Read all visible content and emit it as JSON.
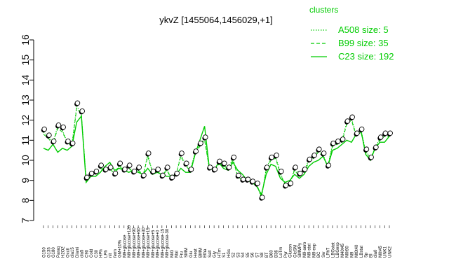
{
  "chart_data": {
    "type": "line",
    "title": "ykvZ [1455064,1456029,+1]",
    "ylim": [
      7,
      16
    ],
    "yticks": [
      7,
      8,
      9,
      10,
      11,
      12,
      13,
      14,
      15,
      16
    ],
    "xlabels": [
      "G150",
      "G135",
      "G180",
      "Paraq",
      "H2O2",
      "Oxctl",
      "dia15",
      "Diami",
      "dia5",
      "C90",
      "Cold",
      "C30",
      "HPh",
      "LPh",
      "nit",
      "ferm",
      "GM+10%",
      "M9+glucose",
      "M9+glucose+120",
      "M9+glucose+90",
      "M9+glucose+60",
      "M9+glucose+30",
      "M9+glucose+15",
      "M9+glucose+5",
      "M9+glucose+0",
      "M9+glucose-15",
      "M9+glucose-30",
      "M/G",
      "Mal",
      "Fru",
      "SMM",
      "Glu",
      "Heat",
      "BMM",
      "Etha",
      "Salt",
      "Gly",
      "HTm",
      "S1",
      "HGs",
      "S2",
      "S3",
      "S4",
      "S5",
      "S6",
      "S7",
      "S8",
      "BT",
      "B60",
      "B36",
      "LoTm",
      "Pyr",
      "Glucon",
      "GlcSM",
      "SMMPy",
      "M9-aero",
      "M9-stat",
      "M9-exp",
      "BC",
      "Sw",
      "LPhT",
      "LBGstat",
      "LBGexp",
      "M40t45",
      "M0t90",
      "M9",
      "Mt0t40",
      "LBstat",
      "Sp",
      "BI",
      "dia0",
      "M0t45",
      "UNK1",
      "UNK2"
    ],
    "series": [
      {
        "name": "C23",
        "color": "#00cc00",
        "dash": "solid",
        "values": [
          10.6,
          10.5,
          10.8,
          10.4,
          10.6,
          10.5,
          10.7,
          11.9,
          12.2,
          8.9,
          9.2,
          9.2,
          9.4,
          9.7,
          9.9,
          9.5,
          9.6,
          9.5,
          9.4,
          9.5,
          9.4,
          9.3,
          9.6,
          9.3,
          9.4,
          9.3,
          9.2,
          9.2,
          9.3,
          9.6,
          9.4,
          9.4,
          10.3,
          11.0,
          11.7,
          9.6,
          9.5,
          9.9,
          9.6,
          9.5,
          9.9,
          9.5,
          9.3,
          9.0,
          8.9,
          8.7,
          8.3,
          9.3,
          9.8,
          9.7,
          9.1,
          8.9,
          9.0,
          9.3,
          9.1,
          9.3,
          9.7,
          9.9,
          10.0,
          10.2,
          9.7,
          10.5,
          10.6,
          10.8,
          11.0,
          10.9,
          11.3,
          11.5,
          10.3,
          10.0,
          10.6,
          10.9,
          10.9,
          11.2
        ],
        "points": [
          11.5,
          11.2,
          10.9,
          11.7,
          11.6,
          10.9,
          10.8,
          12.8,
          12.4,
          9.1,
          9.3,
          9.4,
          9.7,
          9.5,
          9.6,
          9.3,
          9.8,
          9.5,
          9.7,
          9.4,
          9.6,
          9.2,
          10.3,
          9.4,
          9.5,
          9.2,
          9.6,
          9.1,
          9.3,
          10.3,
          9.8,
          9.5,
          10.4,
          10.8,
          11.1,
          9.6,
          9.5,
          9.9,
          9.8,
          9.6,
          10.1,
          9.2,
          9.0,
          9.0,
          8.9,
          8.8,
          8.1,
          9.6,
          10.1,
          10.2,
          9.4,
          8.7,
          8.8,
          9.6,
          9.3,
          9.5,
          10.0,
          10.2,
          10.5,
          10.3,
          9.7,
          10.8,
          10.9,
          11.0,
          11.9,
          12.1,
          11.3,
          11.5,
          10.5,
          10.1,
          10.6,
          11.1,
          11.3,
          11.3
        ]
      },
      {
        "name": "B99",
        "color": "#00cc00",
        "dash": "dashed",
        "values": [
          11.3,
          11.1,
          10.8,
          11.6,
          11.4,
          10.9,
          10.7,
          12.6,
          12.3,
          9.0,
          9.2,
          9.4,
          9.6,
          9.5,
          9.6,
          9.3,
          9.7,
          9.5,
          9.6,
          9.4,
          9.5,
          9.2,
          10.2,
          9.4,
          9.5,
          9.2,
          9.5,
          9.1,
          9.3,
          10.2,
          9.7,
          9.5,
          10.3,
          10.7,
          11.0,
          9.6,
          9.5,
          9.8,
          9.7,
          9.6,
          10.0,
          9.2,
          9.0,
          9.0,
          8.9,
          8.8,
          8.2,
          9.5,
          10.0,
          10.1,
          9.3,
          8.8,
          8.9,
          9.5,
          9.2,
          9.4,
          9.9,
          10.1,
          10.4,
          10.2,
          9.7,
          10.7,
          10.8,
          10.9,
          11.8,
          12.0,
          11.2,
          11.4,
          10.4,
          10.1,
          10.6,
          11.0,
          11.2,
          11.2
        ]
      },
      {
        "name": "A508",
        "color": "#00cc00",
        "dash": "dotted",
        "values": [
          11.4,
          11.2,
          10.9,
          11.7,
          11.5,
          10.9,
          10.8,
          12.7,
          12.3,
          9.1,
          9.3,
          9.4,
          9.7,
          9.5,
          9.6,
          9.3,
          9.8,
          9.5,
          9.7,
          9.4,
          9.6,
          9.2,
          10.3,
          9.4,
          9.5,
          9.2,
          9.6,
          9.1,
          9.3,
          10.3,
          9.8,
          9.5,
          10.4,
          10.8,
          11.1,
          9.6,
          9.5,
          9.9,
          9.8,
          9.6,
          10.1,
          9.2,
          9.0,
          9.0,
          8.9,
          8.8,
          8.1,
          9.6,
          10.1,
          10.2,
          9.4,
          8.7,
          8.8,
          9.6,
          9.3,
          9.5,
          10.0,
          10.2,
          10.5,
          10.3,
          9.7,
          10.8,
          10.9,
          11.0,
          11.9,
          12.1,
          11.3,
          11.5,
          10.5,
          10.1,
          10.6,
          11.1,
          11.3,
          11.3
        ]
      }
    ],
    "legend": {
      "title": "clusters",
      "position": "top-right",
      "entries": [
        {
          "label": "A508 size: 5",
          "dash": "dotted"
        },
        {
          "label": "B99 size: 35",
          "dash": "dashed"
        },
        {
          "label": "C23 size: 192",
          "dash": "solid"
        }
      ]
    }
  }
}
